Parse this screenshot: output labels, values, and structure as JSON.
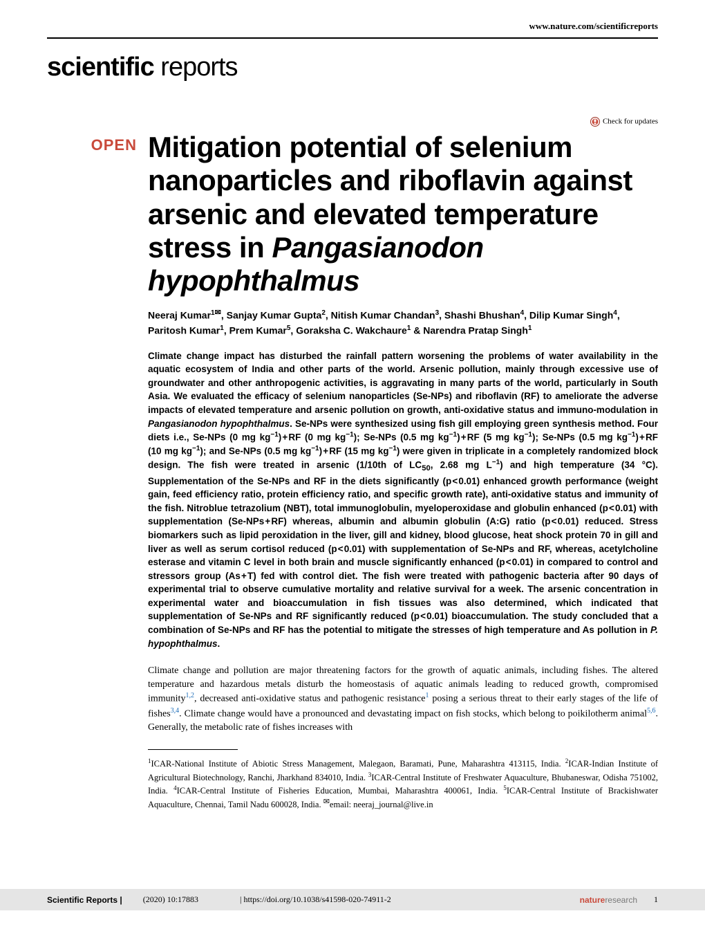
{
  "header": {
    "site_link": "www.nature.com/scientificreports",
    "journal_bold": "scientific",
    "journal_light": " reports",
    "check_updates_label": "Check for updates"
  },
  "article": {
    "badge": "OPEN",
    "title_html": "Mitigation potential of selenium nanoparticles and riboflavin against arsenic and elevated temperature stress in <i>Pangasianodon hypophthalmus</i>",
    "authors_html": "Neeraj Kumar<sup>1<span class=\"envelope\">✉</span></sup>, Sanjay Kumar Gupta<sup>2</sup>, Nitish Kumar Chandan<sup>3</sup>, Shashi Bhushan<sup>4</sup>, Dilip Kumar Singh<sup>4</sup>, Paritosh Kumar<sup>1</sup>, Prem Kumar<sup>5</sup>, Goraksha C. Wakchaure<sup>1</sup> &amp; Narendra Pratap Singh<sup>1</sup>",
    "abstract_html": "Climate change impact has disturbed the rainfall pattern worsening the problems of water availability in the aquatic ecosystem of India and other parts of the world. Arsenic pollution, mainly through excessive use of groundwater and other anthropogenic activities, is aggravating in many parts of the world, particularly in South Asia. We evaluated the efficacy of selenium nanoparticles (Se-NPs) and riboflavin (RF) to ameliorate the adverse impacts of elevated temperature and arsenic pollution on growth, anti-oxidative status and immuno-modulation in <i>Pangasianodon hypophthalmus</i>. Se-NPs were synthesized using fish gill employing green synthesis method. Four diets i.e., Se-NPs (0 mg kg<sup>−1</sup>) + RF (0 mg kg<sup>−1</sup>); Se-NPs (0.5 mg kg<sup>−1</sup>) + RF (5 mg kg<sup>−1</sup>); Se-NPs (0.5 mg kg<sup>−1</sup>) + RF (10 mg kg<sup>−1</sup>); and Se-NPs (0.5 mg kg<sup>−1</sup>) + RF (15 mg kg<sup>−1</sup>) were given in triplicate in a completely randomized block design. The fish were treated in arsenic (1/10th of LC<sub>50</sub>, 2.68 mg L<sup>−1</sup>) and high temperature (34 °C). Supplementation of the Se-NPs and RF in the diets significantly (p < 0.01) enhanced growth performance (weight gain, feed efficiency ratio, protein efficiency ratio, and specific growth rate), anti-oxidative status and immunity of the fish. Nitroblue tetrazolium (NBT), total immunoglobulin, myeloperoxidase and globulin enhanced (p < 0.01) with supplementation (Se-NPs + RF) whereas, albumin and albumin globulin (A:G) ratio (p < 0.01) reduced. Stress biomarkers such as lipid peroxidation in the liver, gill and kidney, blood glucose, heat shock protein 70 in gill and liver as well as serum cortisol reduced (p < 0.01) with supplementation of Se-NPs and RF, whereas, acetylcholine esterase and vitamin C level in both brain and muscle significantly enhanced (p < 0.01) in compared to control and stressors group (As + T) fed with control diet. The fish were treated with pathogenic bacteria after 90 days of experimental trial to observe cumulative mortality and relative survival for a week. The arsenic concentration in experimental water and bioaccumulation in fish tissues was also determined, which indicated that supplementation of Se-NPs and RF significantly reduced (p < 0.01) bioaccumulation. The study concluded that a combination of Se-NPs and RF has the potential to mitigate the stresses of high temperature and As pollution in <i>P. hypophthalmus</i>.",
    "body_html": "Climate change and pollution are major threatening factors for the growth of aquatic animals, including fishes. The altered temperature and hazardous metals disturb the homeostasis of aquatic animals leading to reduced growth, compromised immunity<sup class=\"cite-link\">1,2</sup>, decreased anti-oxidative status and pathogenic resistance<sup class=\"cite-link\">1</sup> posing a serious threat to their early stages of the life of fishes<sup class=\"cite-link\">3,4</sup>. Climate change would have a pronounced and devastating impact on fish stocks, which belong to poikilotherm animal<sup class=\"cite-link\">5,6</sup>. Generally, the metabolic rate of fishes increases with",
    "affiliations_html": "<sup>1</sup>ICAR-National Institute of Abiotic Stress Management, Malegaon, Baramati, Pune, Maharashtra 413115, India. <sup>2</sup>ICAR-Indian Institute of Agricultural Biotechnology, Ranchi, Jharkhand 834010, India. <sup>3</sup>ICAR-Central Institute of Freshwater Aquaculture, Bhubaneswar, Odisha 751002, India. <sup>4</sup>ICAR-Central Institute of Fisheries Education, Mumbai, Maharashtra 400061, India. <sup>5</sup>ICAR-Central Institute of Brackishwater Aquaculture, Chennai, Tamil Nadu 600028, India. <sup><span class=\"envelope\">✉</span></sup>email: neeraj_journal@live.in"
  },
  "footer": {
    "journal": "Scientific Reports |",
    "citation": "(2020) 10:17883",
    "doi": "| https://doi.org/10.1038/s41598-020-74911-2",
    "brand_bold": "nature",
    "brand_gray": "research",
    "page_num": "1"
  },
  "colors": {
    "accent": "#c94a3b",
    "link": "#1a6bb8",
    "footer_bg": "#e5e5e5"
  }
}
